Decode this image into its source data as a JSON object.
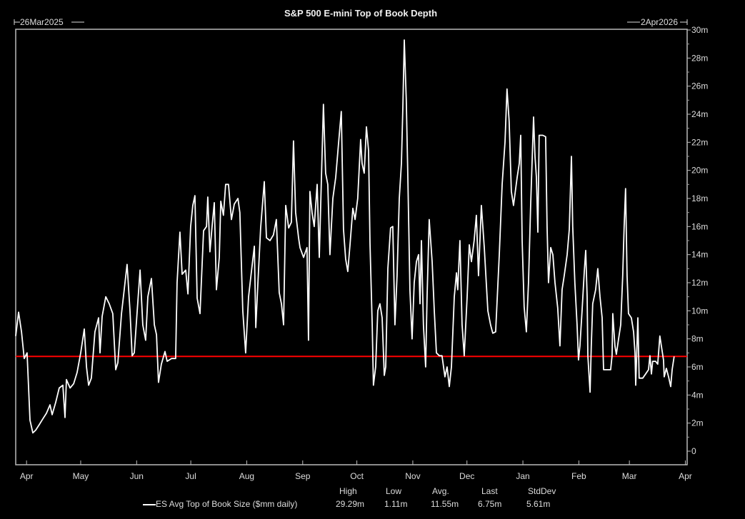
{
  "chart_data": {
    "type": "line",
    "title": "S&P 500 E-mini Top of Book Depth",
    "start_label": "26Mar2025",
    "end_label": "2Apr2026",
    "x_unit": "days since 26Mar2025",
    "xlim": [
      0,
      372
    ],
    "ylim": [
      -0.9,
      30
    ],
    "y_ticks": [
      0,
      2,
      4,
      6,
      8,
      10,
      12,
      14,
      16,
      18,
      20,
      22,
      24,
      26,
      28,
      30
    ],
    "y_tick_labels": [
      "0",
      "2m",
      "4m",
      "6m",
      "8m",
      "10m",
      "12m",
      "14m",
      "16m",
      "18m",
      "20m",
      "22m",
      "24m",
      "26m",
      "28m",
      "30m"
    ],
    "x_ticks": [
      {
        "day": 6,
        "label": "Apr"
      },
      {
        "day": 36,
        "label": "May"
      },
      {
        "day": 67,
        "label": "Jun"
      },
      {
        "day": 97,
        "label": "Jul"
      },
      {
        "day": 128,
        "label": "Aug"
      },
      {
        "day": 159,
        "label": "Sep"
      },
      {
        "day": 189,
        "label": "Oct"
      },
      {
        "day": 220,
        "label": "Nov"
      },
      {
        "day": 250,
        "label": "Dec"
      },
      {
        "day": 281,
        "label": "Jan"
      },
      {
        "day": 312,
        "label": "Feb"
      },
      {
        "day": 340,
        "label": "Mar"
      },
      {
        "day": 371,
        "label": "Apr"
      }
    ],
    "reference_line": {
      "value": 6.75,
      "color": "#ff0000"
    },
    "series": [
      {
        "name": "ES Avg Top of Book Size ($mm daily)",
        "color": "#ffffff",
        "points": [
          [
            0,
            8.2
          ],
          [
            1.6,
            9.9
          ],
          [
            3.2,
            8.5
          ],
          [
            4.7,
            6.6
          ],
          [
            6.3,
            7.0
          ],
          [
            7.9,
            2.2
          ],
          [
            9.5,
            1.3
          ],
          [
            11.1,
            1.5
          ],
          [
            13.1,
            1.9
          ],
          [
            15.0,
            2.3
          ],
          [
            17.0,
            2.7
          ],
          [
            19.0,
            3.3
          ],
          [
            20.2,
            2.6
          ],
          [
            22.2,
            3.5
          ],
          [
            24.1,
            4.5
          ],
          [
            26.1,
            4.7
          ],
          [
            27.3,
            2.4
          ],
          [
            28.1,
            5.1
          ],
          [
            30.1,
            4.5
          ],
          [
            32.1,
            4.8
          ],
          [
            34.0,
            5.6
          ],
          [
            36.0,
            7.0
          ],
          [
            38.0,
            8.7
          ],
          [
            39.2,
            6.0
          ],
          [
            40.4,
            4.7
          ],
          [
            41.9,
            5.2
          ],
          [
            43.9,
            8.5
          ],
          [
            45.9,
            9.5
          ],
          [
            46.7,
            7.0
          ],
          [
            47.9,
            9.6
          ],
          [
            49.9,
            11.0
          ],
          [
            51.8,
            10.5
          ],
          [
            53.8,
            9.8
          ],
          [
            55.4,
            5.8
          ],
          [
            56.6,
            6.3
          ],
          [
            58.6,
            9.8
          ],
          [
            60.1,
            11.5
          ],
          [
            61.7,
            13.3
          ],
          [
            63.3,
            10.0
          ],
          [
            64.5,
            6.8
          ],
          [
            65.7,
            7.0
          ],
          [
            67.3,
            10.0
          ],
          [
            68.9,
            12.9
          ],
          [
            70.4,
            9.0
          ],
          [
            72.0,
            7.9
          ],
          [
            73.2,
            11.0
          ],
          [
            75.2,
            12.3
          ],
          [
            76.8,
            9.0
          ],
          [
            78.0,
            8.3
          ],
          [
            79.1,
            4.9
          ],
          [
            80.7,
            6.2
          ],
          [
            82.7,
            7.1
          ],
          [
            83.9,
            6.4
          ],
          [
            86.3,
            6.6
          ],
          [
            88.6,
            6.6
          ],
          [
            89.4,
            12.0
          ],
          [
            91.0,
            15.6
          ],
          [
            92.2,
            12.6
          ],
          [
            94.2,
            12.9
          ],
          [
            95.4,
            11.2
          ],
          [
            96.9,
            16.0
          ],
          [
            98.1,
            17.5
          ],
          [
            99.3,
            18.2
          ],
          [
            100.5,
            10.9
          ],
          [
            102.1,
            9.8
          ],
          [
            104.1,
            15.7
          ],
          [
            105.7,
            16.0
          ],
          [
            106.4,
            18.1
          ],
          [
            107.6,
            14.2
          ],
          [
            108.8,
            16.0
          ],
          [
            110.0,
            17.7
          ],
          [
            111.2,
            11.5
          ],
          [
            112.8,
            13.8
          ],
          [
            113.6,
            17.8
          ],
          [
            115.1,
            16.8
          ],
          [
            116.3,
            19.0
          ],
          [
            117.9,
            19.0
          ],
          [
            119.5,
            16.5
          ],
          [
            121.1,
            17.6
          ],
          [
            123.1,
            18.0
          ],
          [
            124.2,
            17.0
          ],
          [
            125.8,
            10.0
          ],
          [
            127.4,
            7.0
          ],
          [
            129.0,
            11.0
          ],
          [
            130.6,
            12.8
          ],
          [
            132.2,
            14.6
          ],
          [
            133.0,
            8.8
          ],
          [
            134.1,
            11.8
          ],
          [
            135.7,
            15.9
          ],
          [
            137.7,
            19.2
          ],
          [
            138.9,
            15.2
          ],
          [
            140.9,
            15.0
          ],
          [
            142.8,
            15.4
          ],
          [
            144.4,
            16.5
          ],
          [
            146.0,
            11.3
          ],
          [
            147.2,
            10.5
          ],
          [
            148.4,
            9.0
          ],
          [
            149.6,
            17.5
          ],
          [
            151.2,
            15.9
          ],
          [
            152.7,
            16.3
          ],
          [
            153.9,
            22.1
          ],
          [
            155.1,
            17.0
          ],
          [
            156.7,
            15.2
          ],
          [
            157.5,
            14.5
          ],
          [
            159.5,
            13.8
          ],
          [
            161.4,
            14.5
          ],
          [
            162.2,
            7.9
          ],
          [
            163.0,
            18.5
          ],
          [
            164.2,
            17.0
          ],
          [
            165.4,
            16.0
          ],
          [
            167.0,
            19.0
          ],
          [
            168.2,
            13.8
          ],
          [
            169.8,
            21.5
          ],
          [
            170.5,
            24.7
          ],
          [
            171.7,
            19.8
          ],
          [
            172.9,
            19.0
          ],
          [
            174.1,
            14.0
          ],
          [
            175.7,
            18.0
          ],
          [
            177.3,
            19.5
          ],
          [
            178.9,
            22.0
          ],
          [
            180.4,
            24.2
          ],
          [
            181.6,
            15.8
          ],
          [
            182.8,
            13.7
          ],
          [
            184.0,
            12.8
          ],
          [
            185.2,
            14.7
          ],
          [
            186.8,
            17.3
          ],
          [
            188.0,
            16.5
          ],
          [
            189.5,
            18.0
          ],
          [
            191.1,
            22.2
          ],
          [
            191.9,
            20.5
          ],
          [
            193.1,
            19.8
          ],
          [
            194.3,
            23.1
          ],
          [
            195.5,
            21.4
          ],
          [
            196.3,
            14.8
          ],
          [
            197.5,
            9.0
          ],
          [
            198.2,
            4.7
          ],
          [
            199.4,
            6.0
          ],
          [
            200.6,
            10.0
          ],
          [
            201.8,
            10.5
          ],
          [
            203.0,
            9.5
          ],
          [
            204.2,
            5.4
          ],
          [
            205.0,
            6.0
          ],
          [
            206.2,
            13.0
          ],
          [
            207.7,
            15.9
          ],
          [
            208.9,
            16.0
          ],
          [
            210.1,
            9.0
          ],
          [
            211.3,
            12.5
          ],
          [
            212.5,
            18.0
          ],
          [
            213.7,
            20.5
          ],
          [
            214.5,
            24.5
          ],
          [
            215.3,
            29.29
          ],
          [
            216.4,
            25.0
          ],
          [
            217.2,
            20.0
          ],
          [
            218.4,
            11.5
          ],
          [
            219.6,
            8.0
          ],
          [
            220.8,
            12.0
          ],
          [
            222.0,
            13.5
          ],
          [
            223.2,
            14.0
          ],
          [
            224.0,
            10.5
          ],
          [
            224.8,
            15.0
          ],
          [
            225.9,
            9.0
          ],
          [
            227.1,
            6.0
          ],
          [
            227.9,
            11.0
          ],
          [
            229.1,
            16.5
          ],
          [
            230.7,
            13.5
          ],
          [
            231.9,
            10.0
          ],
          [
            233.1,
            7.0
          ],
          [
            234.7,
            6.8
          ],
          [
            236.2,
            6.8
          ],
          [
            237.8,
            5.3
          ],
          [
            239.0,
            6.0
          ],
          [
            240.2,
            4.6
          ],
          [
            241.4,
            6.0
          ],
          [
            243.0,
            11.0
          ],
          [
            244.2,
            12.7
          ],
          [
            244.9,
            11.5
          ],
          [
            246.1,
            15.0
          ],
          [
            247.3,
            9.0
          ],
          [
            248.5,
            6.8
          ],
          [
            250.1,
            11.0
          ],
          [
            251.3,
            14.7
          ],
          [
            252.5,
            13.5
          ],
          [
            254.0,
            15.0
          ],
          [
            255.2,
            16.8
          ],
          [
            256.4,
            12.5
          ],
          [
            258.0,
            17.5
          ],
          [
            259.6,
            14.5
          ],
          [
            261.6,
            10.0
          ],
          [
            263.1,
            9.0
          ],
          [
            264.3,
            8.4
          ],
          [
            265.9,
            8.5
          ],
          [
            267.9,
            14.0
          ],
          [
            269.5,
            19.0
          ],
          [
            271.1,
            22.0
          ],
          [
            272.2,
            25.8
          ],
          [
            273.4,
            23.5
          ],
          [
            274.6,
            18.5
          ],
          [
            275.8,
            17.5
          ],
          [
            277.8,
            19.5
          ],
          [
            279.0,
            20.5
          ],
          [
            279.8,
            22.5
          ],
          [
            280.6,
            15.0
          ],
          [
            281.7,
            10.3
          ],
          [
            282.9,
            8.5
          ],
          [
            284.1,
            12.0
          ],
          [
            285.3,
            17.5
          ],
          [
            286.9,
            23.8
          ],
          [
            287.7,
            21.0
          ],
          [
            288.5,
            19.5
          ],
          [
            289.3,
            15.6
          ],
          [
            290.0,
            22.5
          ],
          [
            292.0,
            22.5
          ],
          [
            293.6,
            22.4
          ],
          [
            294.4,
            16.0
          ],
          [
            295.2,
            12.0
          ],
          [
            296.4,
            14.5
          ],
          [
            297.6,
            14.0
          ],
          [
            298.8,
            12.0
          ],
          [
            300.3,
            10.2
          ],
          [
            301.5,
            7.5
          ],
          [
            302.7,
            11.5
          ],
          [
            303.9,
            12.5
          ],
          [
            305.5,
            14.0
          ],
          [
            306.7,
            15.8
          ],
          [
            307.9,
            21.0
          ],
          [
            308.6,
            16.0
          ],
          [
            309.8,
            12.0
          ],
          [
            311.0,
            9.0
          ],
          [
            311.8,
            6.5
          ],
          [
            312.6,
            7.5
          ],
          [
            313.8,
            10.0
          ],
          [
            315.0,
            12.8
          ],
          [
            315.8,
            14.3
          ],
          [
            316.6,
            11.0
          ],
          [
            317.0,
            6.8
          ],
          [
            318.2,
            4.2
          ],
          [
            318.9,
            7.5
          ],
          [
            319.7,
            10.5
          ],
          [
            321.3,
            11.5
          ],
          [
            322.5,
            13.0
          ],
          [
            323.7,
            11.0
          ],
          [
            324.9,
            9.5
          ],
          [
            325.7,
            5.8
          ],
          [
            327.6,
            5.8
          ],
          [
            329.6,
            5.8
          ],
          [
            330.4,
            6.8
          ],
          [
            330.8,
            9.8
          ],
          [
            332.0,
            7.5
          ],
          [
            332.8,
            6.9
          ],
          [
            334.0,
            8.0
          ],
          [
            335.2,
            9.0
          ],
          [
            336.3,
            12.5
          ],
          [
            337.1,
            16.0
          ],
          [
            337.9,
            18.7
          ],
          [
            338.7,
            12.5
          ],
          [
            339.5,
            9.8
          ],
          [
            341.1,
            9.5
          ],
          [
            342.3,
            8.5
          ],
          [
            343.1,
            7.0
          ],
          [
            343.5,
            4.7
          ],
          [
            344.7,
            9.5
          ],
          [
            345.4,
            5.2
          ],
          [
            347.4,
            5.2
          ],
          [
            349.0,
            5.5
          ],
          [
            350.6,
            5.8
          ],
          [
            351.4,
            6.8
          ],
          [
            352.2,
            5.5
          ],
          [
            352.9,
            6.4
          ],
          [
            354.5,
            6.4
          ],
          [
            355.7,
            6.2
          ],
          [
            356.9,
            8.2
          ],
          [
            357.7,
            7.5
          ],
          [
            358.9,
            6.5
          ],
          [
            359.3,
            5.3
          ],
          [
            360.5,
            5.9
          ],
          [
            361.7,
            5.3
          ],
          [
            362.9,
            4.6
          ],
          [
            363.7,
            5.8
          ],
          [
            364.8,
            6.75
          ]
        ]
      }
    ],
    "legend": {
      "series_label": "ES Avg Top of Book Size ($mm daily)",
      "headers": [
        "High",
        "Low",
        "Avg.",
        "Last",
        "StdDev"
      ],
      "values": [
        "29.29m",
        "1.11m",
        "11.55m",
        "6.75m",
        "5.61m"
      ]
    }
  }
}
